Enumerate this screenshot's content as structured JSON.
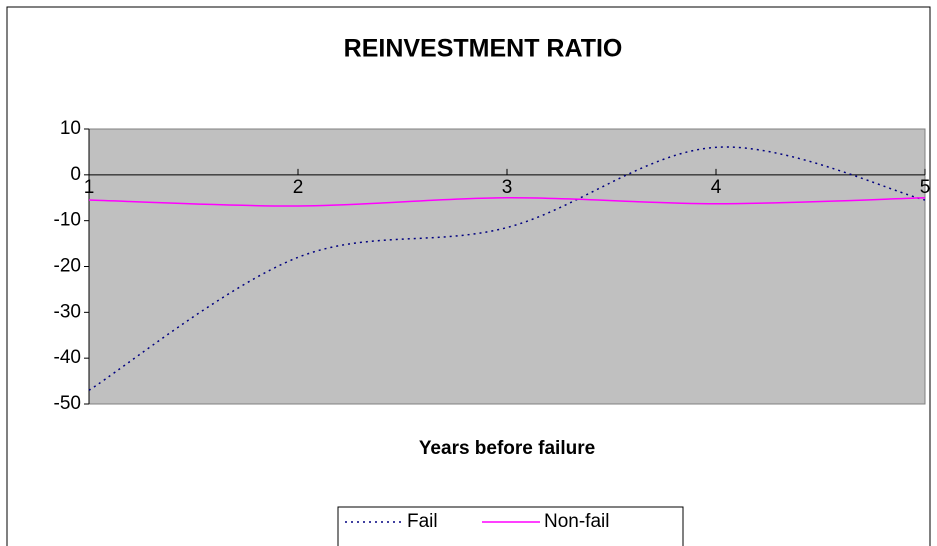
{
  "chart_data": {
    "type": "line",
    "title": "REINVESTMENT RATIO",
    "x_label": "Years before failure",
    "categories": [
      "1",
      "2",
      "3",
      "4",
      "5"
    ],
    "series": [
      {
        "name": "Fail",
        "color": "#000080",
        "dashed": true,
        "values": [
          -47,
          -18,
          -11.5,
          6,
          -5.5
        ]
      },
      {
        "name": "Non-fail",
        "color": "#ff00ff",
        "dashed": false,
        "values": [
          -5.5,
          -6.8,
          -5,
          -6.3,
          -5
        ]
      }
    ],
    "ylim": [
      -50,
      10
    ],
    "yticks": [
      -50,
      -40,
      -30,
      -20,
      -10,
      0,
      10
    ],
    "grid": false,
    "smooth": true,
    "legend": "bottom"
  }
}
